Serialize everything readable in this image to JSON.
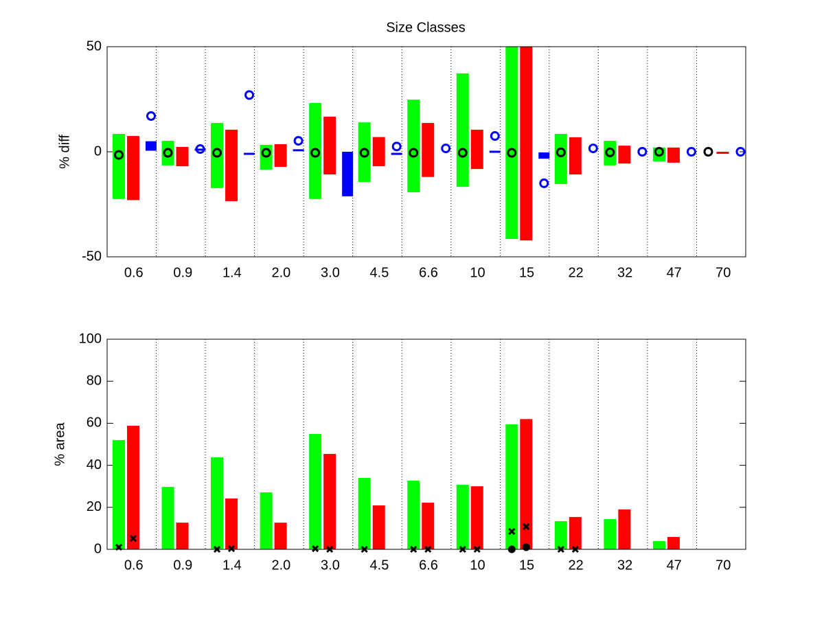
{
  "chart_data": [
    {
      "type": "range-bar",
      "title": "Size Classes",
      "y_label": "% diff",
      "categories": [
        "0.6",
        "0.9",
        "1.4",
        "2.0",
        "3.0",
        "4.5",
        "6.6",
        "10",
        "15",
        "22",
        "32",
        "47",
        "70"
      ],
      "ylim": [
        -50,
        50
      ],
      "yticks": [
        -50,
        0,
        50
      ],
      "series": [
        {
          "color": "#00ff00",
          "marker": "bar",
          "low": [
            -22.5,
            -6.5,
            -17.3,
            -8.5,
            -22.5,
            -14.4,
            -19.3,
            -16.7,
            -41.5,
            -15.4,
            -6.5,
            -4.6,
            null
          ],
          "high": [
            8.5,
            5.2,
            13.7,
            3.3,
            23.2,
            14,
            24.8,
            37.3,
            50,
            8.5,
            5.2,
            2,
            null
          ]
        },
        {
          "color": "#ff0000",
          "marker": "bar",
          "low": [
            -23,
            -6.9,
            -23.5,
            -7.2,
            -10.8,
            -6.9,
            -12,
            -8.2,
            -42.2,
            -10.8,
            -5.6,
            -5.2,
            -1
          ],
          "high": [
            7.5,
            2.3,
            10.5,
            3.6,
            16.7,
            7,
            13.7,
            10.5,
            50,
            6.9,
            2.9,
            2,
            0
          ]
        },
        {
          "color": "#0000ff",
          "marker": "bar",
          "low": [
            0.5,
            0.5,
            -1,
            0.5,
            -21.2,
            -1.5,
            null,
            -0.5,
            -3.3,
            null,
            null,
            null,
            null
          ],
          "high": [
            5,
            1.5,
            -0.5,
            1.2,
            0,
            -0.5,
            null,
            0.5,
            -0.3,
            null,
            null,
            null,
            null
          ]
        },
        {
          "color": "#0000ff",
          "marker": "circle",
          "values": [
            17,
            1.3,
            27,
            5.2,
            null,
            2.5,
            1.6,
            7.5,
            -15,
            1.6,
            0,
            0,
            0
          ]
        },
        {
          "color": "#000000",
          "marker": "circle",
          "values": [
            -1.5,
            -0.5,
            -0.5,
            -0.5,
            -0.5,
            -0.5,
            -0.5,
            -0.5,
            -0.5,
            -0.3,
            -0.3,
            0,
            0
          ]
        }
      ]
    },
    {
      "type": "bar",
      "y_label": "% area",
      "categories": [
        "0.6",
        "0.9",
        "1.4",
        "2.0",
        "3.0",
        "4.5",
        "6.6",
        "10",
        "15",
        "22",
        "32",
        "47",
        "70"
      ],
      "ylim": [
        0,
        100
      ],
      "yticks": [
        0,
        20,
        40,
        60,
        80,
        100
      ],
      "series": [
        {
          "color": "#00ff00",
          "marker": "bar",
          "values": [
            52,
            29.7,
            43.8,
            27.1,
            54.9,
            34,
            32.7,
            30.7,
            59.5,
            13.4,
            14.4,
            3.9,
            null
          ]
        },
        {
          "color": "#ff0000",
          "marker": "bar",
          "values": [
            58.8,
            12.7,
            24.2,
            12.7,
            45.4,
            20.9,
            22.2,
            30,
            62,
            15.4,
            19,
            5.9,
            null
          ]
        },
        {
          "color": "#000000",
          "marker": "x",
          "values": [
            1,
            null,
            0,
            null,
            0.3,
            0,
            0,
            0,
            8.5,
            0,
            null,
            null,
            null
          ]
        },
        {
          "color": "#000000",
          "marker": "x",
          "values": [
            5.2,
            null,
            0.3,
            null,
            0,
            null,
            0,
            0,
            10.8,
            0,
            null,
            null,
            null
          ]
        },
        {
          "color": "#000000",
          "marker": "dot",
          "values": [
            null,
            null,
            null,
            null,
            null,
            null,
            null,
            null,
            0,
            null,
            null,
            null,
            null
          ]
        },
        {
          "color": "#000000",
          "marker": "dot",
          "values": [
            null,
            null,
            null,
            null,
            null,
            null,
            null,
            null,
            1,
            null,
            null,
            null,
            null
          ]
        }
      ]
    }
  ]
}
